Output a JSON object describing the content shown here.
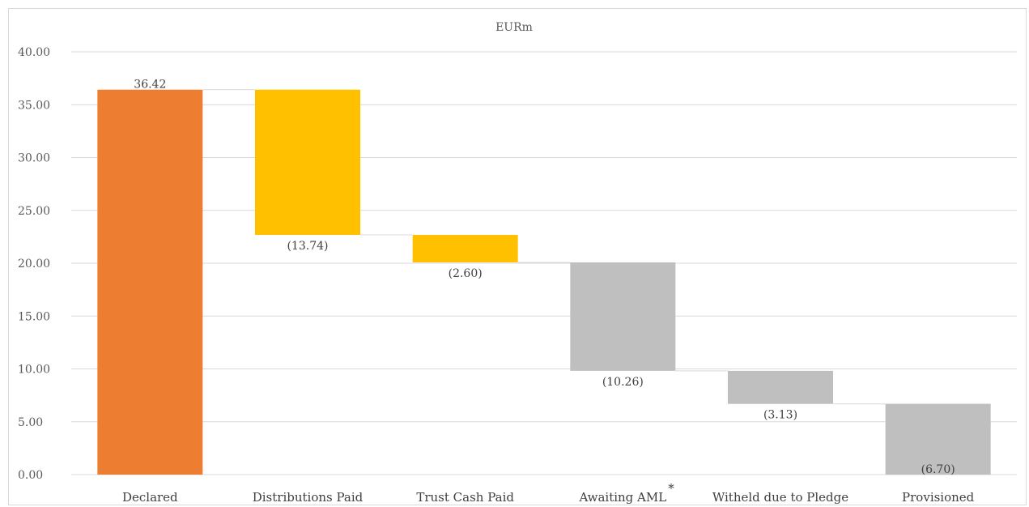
{
  "chart_data": {
    "type": "bar",
    "subtype": "waterfall",
    "title": "EURm",
    "categories": [
      "Declared",
      "Distributions Paid",
      "Trust Cash Paid",
      "Awaiting AML",
      "Witheld due to Pledge",
      "Provisioned"
    ],
    "category_superscripts": [
      "",
      "",
      "",
      "*",
      "",
      ""
    ],
    "values": [
      36.42,
      -13.74,
      -2.6,
      -10.26,
      -3.13,
      6.7
    ],
    "data_labels": [
      "36.42",
      "(13.74)",
      "(2.60)",
      "(10.26)",
      "(3.13)",
      "(6.70)"
    ],
    "bar_kind": [
      "total",
      "delta",
      "delta",
      "delta",
      "delta",
      "total"
    ],
    "colors": [
      "#ED7D31",
      "#FFC000",
      "#FFC000",
      "#BFBFBF",
      "#BFBFBF",
      "#BFBFBF"
    ],
    "y_ticks": [
      "0.00",
      "5.00",
      "10.00",
      "15.00",
      "20.00",
      "25.00",
      "30.00",
      "35.00",
      "40.00"
    ],
    "ylim": [
      0,
      40
    ],
    "grid": true,
    "legend": false
  }
}
